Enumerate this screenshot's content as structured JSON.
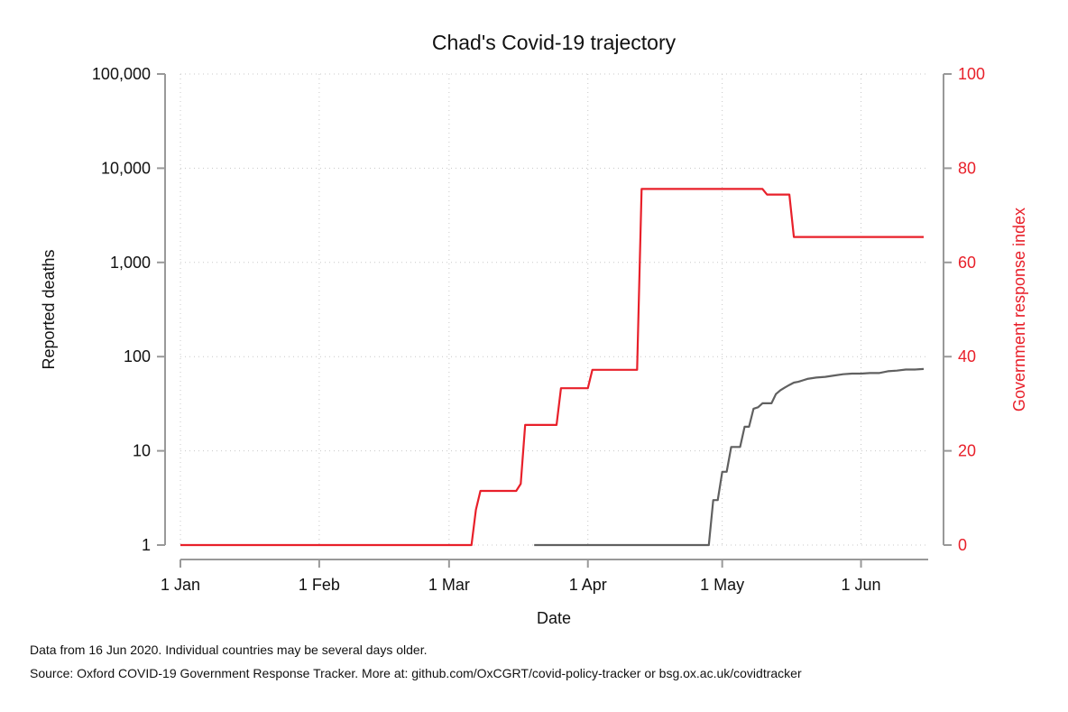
{
  "chart_data": {
    "type": "line",
    "title": "Chad's Covid-19 trajectory",
    "xlabel": "Date",
    "ylabel_left": "Reported deaths",
    "ylabel_right": "Government response index",
    "y_left_scale": "log",
    "y_left_lim": [
      1,
      100000
    ],
    "y_left_ticks": [
      1,
      10,
      100,
      1000,
      10000,
      100000
    ],
    "y_left_tick_labels": [
      "1",
      "10",
      "100",
      "1,000",
      "10,000",
      "100,000"
    ],
    "y_right_lim": [
      0,
      100
    ],
    "y_right_ticks": [
      0,
      20,
      40,
      60,
      80,
      100
    ],
    "y_right_tick_labels": [
      "0",
      "20",
      "40",
      "60",
      "80",
      "100"
    ],
    "x_ticks": [
      "2020-01-01",
      "2020-02-01",
      "2020-03-01",
      "2020-04-01",
      "2020-05-01",
      "2020-06-01"
    ],
    "x_tick_labels": [
      "1 Jan",
      "1 Feb",
      "1 Mar",
      "1 Apr",
      "1 May",
      "1 Jun"
    ],
    "x_lim": [
      "2020-01-01",
      "2020-06-16"
    ],
    "grid": true,
    "series": [
      {
        "axis": "right",
        "color": "#e8202a",
        "points": [
          [
            "2020-01-01",
            0
          ],
          [
            "2020-03-06",
            0
          ],
          [
            "2020-03-07",
            7.5
          ],
          [
            "2020-03-08",
            11.5
          ],
          [
            "2020-03-16",
            11.5
          ],
          [
            "2020-03-17",
            13
          ],
          [
            "2020-03-18",
            25.5
          ],
          [
            "2020-03-25",
            25.5
          ],
          [
            "2020-03-26",
            33.3
          ],
          [
            "2020-04-01",
            33.3
          ],
          [
            "2020-04-02",
            37.2
          ],
          [
            "2020-04-12",
            37.2
          ],
          [
            "2020-04-13",
            75.6
          ],
          [
            "2020-05-10",
            75.6
          ],
          [
            "2020-05-11",
            74.4
          ],
          [
            "2020-05-16",
            74.4
          ],
          [
            "2020-05-17",
            65.4
          ],
          [
            "2020-06-15",
            65.4
          ]
        ]
      },
      {
        "axis": "left",
        "color": "#606060",
        "points": [
          [
            "2020-03-20",
            1
          ],
          [
            "2020-04-28",
            1
          ],
          [
            "2020-04-29",
            3
          ],
          [
            "2020-04-30",
            3
          ],
          [
            "2020-05-01",
            6
          ],
          [
            "2020-05-02",
            6
          ],
          [
            "2020-05-03",
            11
          ],
          [
            "2020-05-05",
            11
          ],
          [
            "2020-05-06",
            18
          ],
          [
            "2020-05-07",
            18
          ],
          [
            "2020-05-08",
            28
          ],
          [
            "2020-05-09",
            29
          ],
          [
            "2020-05-10",
            32
          ],
          [
            "2020-05-12",
            32
          ],
          [
            "2020-05-13",
            40
          ],
          [
            "2020-05-14",
            44
          ],
          [
            "2020-05-15",
            47
          ],
          [
            "2020-05-16",
            50
          ],
          [
            "2020-05-17",
            53
          ],
          [
            "2020-05-18",
            54
          ],
          [
            "2020-05-19",
            56
          ],
          [
            "2020-05-20",
            58
          ],
          [
            "2020-05-22",
            60
          ],
          [
            "2020-05-24",
            61
          ],
          [
            "2020-05-26",
            63
          ],
          [
            "2020-05-28",
            65
          ],
          [
            "2020-05-30",
            66
          ],
          [
            "2020-06-01",
            66
          ],
          [
            "2020-06-03",
            67
          ],
          [
            "2020-06-05",
            67
          ],
          [
            "2020-06-07",
            70
          ],
          [
            "2020-06-09",
            71
          ],
          [
            "2020-06-11",
            73
          ],
          [
            "2020-06-13",
            73
          ],
          [
            "2020-06-15",
            74
          ]
        ]
      }
    ]
  },
  "notes": {
    "line1": "Data from 16 Jun 2020. Individual countries may be several days older.",
    "line2": "Source: Oxford COVID-19 Government Response Tracker. More at: github.com/OxCGRT/covid-policy-tracker or bsg.ox.ac.uk/covidtracker"
  }
}
